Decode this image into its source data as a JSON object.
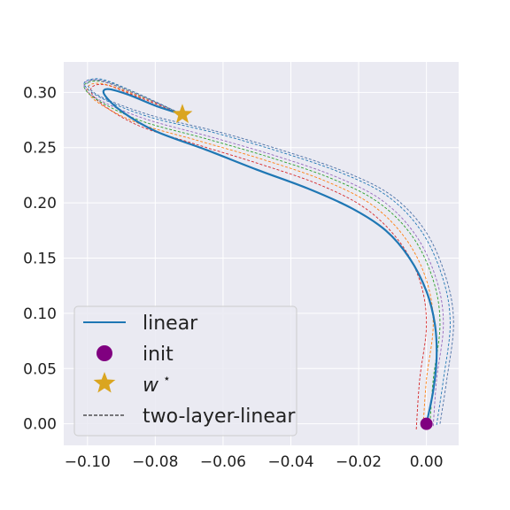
{
  "chart_data": {
    "type": "line",
    "title": "",
    "xlabel": "",
    "ylabel": "",
    "xlim": [
      -0.107,
      0.0095
    ],
    "ylim": [
      -0.0195,
      0.3275
    ],
    "xticks": [
      -0.1,
      -0.08,
      -0.06,
      -0.04,
      -0.02,
      0.0
    ],
    "xtick_labels": [
      "−0.10",
      "−0.08",
      "−0.06",
      "−0.04",
      "−0.02",
      "0.00"
    ],
    "yticks": [
      0.0,
      0.05,
      0.1,
      0.15,
      0.2,
      0.25,
      0.3
    ],
    "ytick_labels": [
      "0.00",
      "0.05",
      "0.10",
      "0.15",
      "0.20",
      "0.25",
      "0.30"
    ],
    "grid": true,
    "legend_position": "lower-left",
    "legend": [
      {
        "label": "linear",
        "kind": "line",
        "color": "#1f77b4"
      },
      {
        "label": "init",
        "kind": "circle",
        "color": "#800080"
      },
      {
        "label": "w",
        "sup": "⋆",
        "kind": "star",
        "color": "#DAA520"
      },
      {
        "label": "two-layer-linear",
        "kind": "dashed",
        "color": "#000000"
      }
    ],
    "series": [
      {
        "name": "linear",
        "style": "solid",
        "color": "#1f77b4",
        "x": [
          0.0,
          0.002,
          0.003,
          0.0025,
          0.0,
          -0.005,
          -0.012,
          -0.022,
          -0.035,
          -0.05,
          -0.065,
          -0.08,
          -0.09,
          -0.095,
          -0.094,
          -0.088,
          -0.08,
          -0.072
        ],
        "y": [
          0.0,
          0.03,
          0.06,
          0.09,
          0.12,
          0.15,
          0.175,
          0.195,
          0.213,
          0.23,
          0.248,
          0.265,
          0.283,
          0.298,
          0.303,
          0.298,
          0.288,
          0.28
        ]
      },
      {
        "style": "dashed",
        "color": "#d62728",
        "x": [
          -0.003,
          -0.002,
          0.0,
          -0.002,
          -0.008,
          -0.018,
          -0.032,
          -0.05,
          -0.068,
          -0.085,
          -0.096,
          -0.099,
          -0.095,
          -0.086,
          -0.072
        ],
        "y": [
          -0.005,
          0.04,
          0.09,
          0.13,
          0.165,
          0.195,
          0.217,
          0.236,
          0.253,
          0.27,
          0.29,
          0.303,
          0.307,
          0.297,
          0.28
        ]
      },
      {
        "style": "dashed",
        "color": "#ff7f0e",
        "x": [
          -0.001,
          0.0,
          0.002,
          0.0,
          -0.006,
          -0.016,
          -0.03,
          -0.048,
          -0.067,
          -0.085,
          -0.097,
          -0.1,
          -0.096,
          -0.086,
          -0.072
        ],
        "y": [
          -0.004,
          0.04,
          0.09,
          0.13,
          0.167,
          0.198,
          0.22,
          0.239,
          0.256,
          0.272,
          0.291,
          0.304,
          0.308,
          0.298,
          0.28
        ]
      },
      {
        "style": "dashed",
        "color": "#2ca02c",
        "x": [
          0.001,
          0.002,
          0.004,
          0.002,
          -0.004,
          -0.014,
          -0.028,
          -0.046,
          -0.065,
          -0.084,
          -0.097,
          -0.101,
          -0.096,
          -0.086,
          -0.072
        ],
        "y": [
          -0.003,
          0.04,
          0.09,
          0.13,
          0.169,
          0.2,
          0.222,
          0.241,
          0.258,
          0.274,
          0.293,
          0.306,
          0.31,
          0.299,
          0.28
        ]
      },
      {
        "style": "dashed",
        "color": "#9467bd",
        "x": [
          0.002,
          0.003,
          0.005,
          0.003,
          -0.003,
          -0.013,
          -0.027,
          -0.045,
          -0.064,
          -0.083,
          -0.097,
          -0.101,
          -0.097,
          -0.087,
          -0.072
        ],
        "y": [
          -0.002,
          0.04,
          0.09,
          0.13,
          0.17,
          0.202,
          0.224,
          0.243,
          0.26,
          0.276,
          0.294,
          0.307,
          0.311,
          0.3,
          0.28
        ]
      },
      {
        "style": "dashed",
        "color": "#1f77b4",
        "x": [
          0.003,
          0.005,
          0.007,
          0.005,
          -0.001,
          -0.011,
          -0.025,
          -0.043,
          -0.062,
          -0.082,
          -0.096,
          -0.101,
          -0.096,
          -0.086,
          -0.072
        ],
        "y": [
          -0.001,
          0.04,
          0.09,
          0.13,
          0.172,
          0.205,
          0.227,
          0.246,
          0.263,
          0.278,
          0.295,
          0.308,
          0.312,
          0.3,
          0.28
        ]
      },
      {
        "style": "dashed",
        "color": "#4a6fa5",
        "x": [
          0.004,
          0.006,
          0.008,
          0.006,
          0.0,
          -0.01,
          -0.024,
          -0.042,
          -0.061,
          -0.081,
          -0.096,
          -0.1,
          -0.096,
          -0.086,
          -0.072
        ],
        "y": [
          0.0,
          0.04,
          0.09,
          0.13,
          0.173,
          0.206,
          0.228,
          0.247,
          0.264,
          0.279,
          0.296,
          0.308,
          0.311,
          0.3,
          0.28
        ]
      }
    ],
    "points": [
      {
        "name": "init",
        "x": 0.0,
        "y": 0.0,
        "marker": "circle",
        "color": "#800080"
      },
      {
        "name": "w",
        "sup": "⋆",
        "x": -0.072,
        "y": 0.28,
        "marker": "star",
        "color": "#DAA520"
      }
    ]
  }
}
